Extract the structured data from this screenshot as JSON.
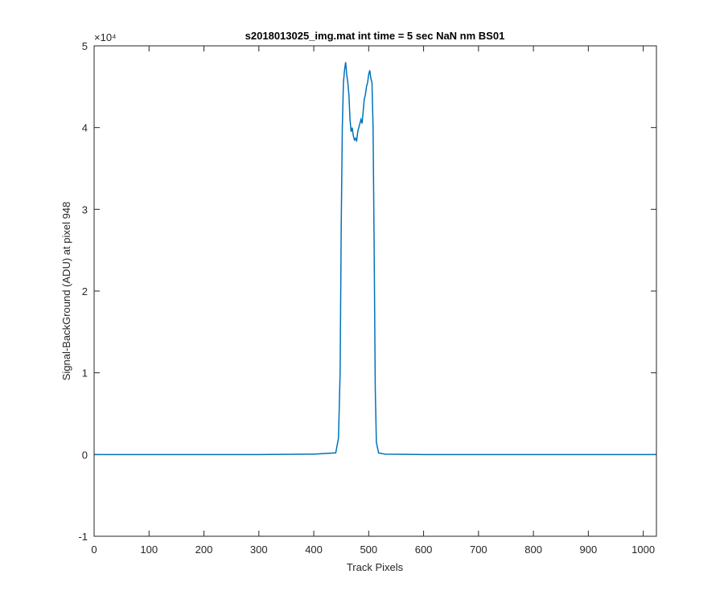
{
  "chart_data": {
    "type": "line",
    "title": "s2018013025_img.mat int time = 5 sec  NaN nm BS01",
    "xlabel": "Track Pixels",
    "ylabel": "Signal-BackGround (ADU) at pixel 948",
    "xlim": [
      0,
      1024
    ],
    "ylim": [
      -10000,
      50000
    ],
    "y_scale_factor_text": "×10⁴",
    "x_ticks": [
      0,
      100,
      200,
      300,
      400,
      500,
      600,
      700,
      800,
      900,
      1000
    ],
    "x_tick_labels": [
      "0",
      "100",
      "200",
      "300",
      "400",
      "500",
      "600",
      "700",
      "800",
      "900",
      "1000"
    ],
    "y_ticks": [
      -10000,
      0,
      10000,
      20000,
      30000,
      40000,
      50000
    ],
    "y_tick_labels": [
      "-1",
      "0",
      "1",
      "2",
      "3",
      "4",
      "5"
    ],
    "grid": false,
    "line_color": "#0072BD",
    "series": [
      {
        "x": [
          0,
          100,
          200,
          300,
          400,
          440,
          445,
          448,
          450,
          452,
          454,
          456,
          458,
          460,
          462,
          464,
          466,
          468,
          470,
          472,
          474,
          476,
          478,
          480,
          482,
          484,
          486,
          488,
          490,
          492,
          494,
          496,
          498,
          500,
          502,
          504,
          506,
          508,
          510,
          512,
          514,
          518,
          530,
          600,
          700,
          800,
          900,
          1024
        ],
        "y": [
          0,
          0,
          0,
          0,
          50,
          200,
          2000,
          10000,
          28000,
          40000,
          45500,
          47000,
          48000,
          46500,
          45500,
          44000,
          41000,
          39500,
          40000,
          39000,
          38500,
          38700,
          38300,
          39500,
          40000,
          40500,
          41000,
          40500,
          42000,
          43500,
          44000,
          45000,
          45500,
          46500,
          47000,
          46000,
          45500,
          40000,
          25000,
          8000,
          1500,
          200,
          50,
          0,
          0,
          0,
          0,
          0
        ]
      }
    ]
  }
}
